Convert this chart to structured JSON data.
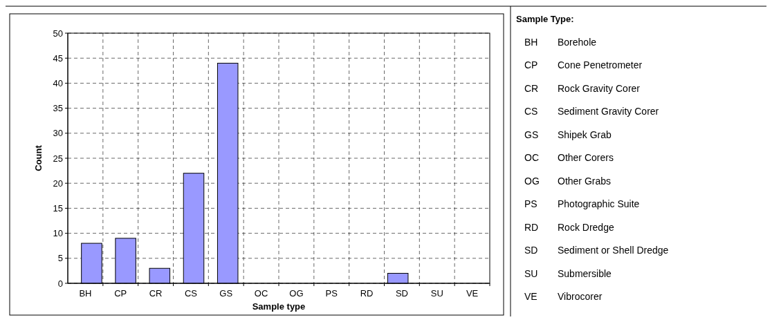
{
  "chart_data": {
    "type": "bar",
    "xlabel": "Sample type",
    "ylabel": "Count",
    "categories": [
      "BH",
      "CP",
      "CR",
      "CS",
      "GS",
      "OC",
      "OG",
      "PS",
      "RD",
      "SD",
      "SU",
      "VE"
    ],
    "values": [
      8,
      9,
      3,
      22,
      44,
      0,
      0,
      0,
      0,
      2,
      0,
      0
    ],
    "color": "#9999ff",
    "ylim": [
      0,
      50
    ],
    "yticks": [
      0,
      5,
      10,
      15,
      20,
      25,
      30,
      35,
      40,
      45,
      50
    ],
    "grid": true,
    "line_style": "dashed",
    "annotations": [
      "Sample Type:",
      "BH Borehole",
      "CP Cone Penetrometer",
      "CR Rock Gravity Corer",
      "CS Sediment Gravity Corer",
      "GS Shipek Grab",
      "OC Other Corers",
      "OG Other Grabs",
      "PS Photographic Suite",
      "RD Rock Dredge",
      "SD Sediment or Shell Dredge",
      "SU Submersible",
      "VE Vibrocorer"
    ]
  }
}
